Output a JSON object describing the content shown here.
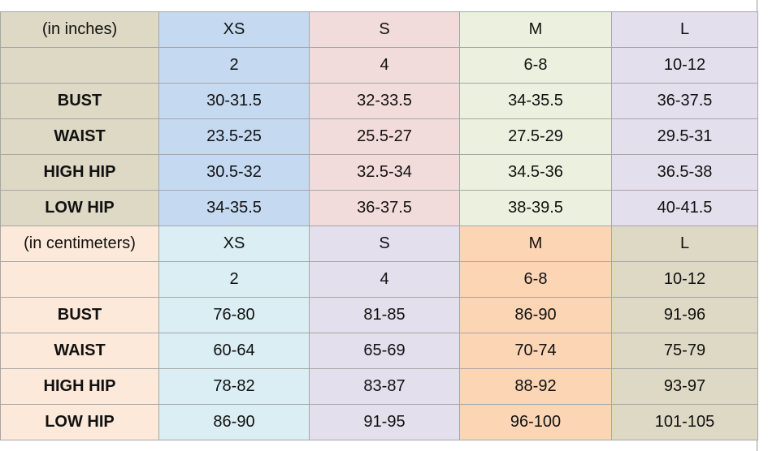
{
  "sections": [
    {
      "unit": "(in inches)",
      "sizes": [
        "XS",
        "S",
        "M",
        "L"
      ],
      "numbers": [
        "2",
        "4",
        "6-8",
        "10-12"
      ],
      "rows": [
        {
          "label": "BUST",
          "values": [
            "30-31.5",
            "32-33.5",
            "34-35.5",
            "36-37.5"
          ]
        },
        {
          "label": "WAIST",
          "values": [
            "23.5-25",
            "25.5-27",
            "27.5-29",
            "29.5-31"
          ]
        },
        {
          "label": "HIGH HIP",
          "values": [
            "30.5-32",
            "32.5-34",
            "34.5-36",
            "36.5-38"
          ]
        },
        {
          "label": "LOW HIP",
          "values": [
            "34-35.5",
            "36-37.5",
            "38-39.5",
            "40-41.5"
          ]
        }
      ]
    },
    {
      "unit": "(in centimeters)",
      "sizes": [
        "XS",
        "S",
        "M",
        "L"
      ],
      "numbers": [
        "2",
        "4",
        "6-8",
        "10-12"
      ],
      "rows": [
        {
          "label": "BUST",
          "values": [
            "76-80",
            "81-85",
            "86-90",
            "91-96"
          ]
        },
        {
          "label": "WAIST",
          "values": [
            "60-64",
            "65-69",
            "70-74",
            "75-79"
          ]
        },
        {
          "label": "HIGH HIP",
          "values": [
            "78-82",
            "83-87",
            "88-92",
            "93-97"
          ]
        },
        {
          "label": "LOW HIP",
          "values": [
            "86-90",
            "91-95",
            "96-100",
            "101-105"
          ]
        }
      ]
    }
  ]
}
